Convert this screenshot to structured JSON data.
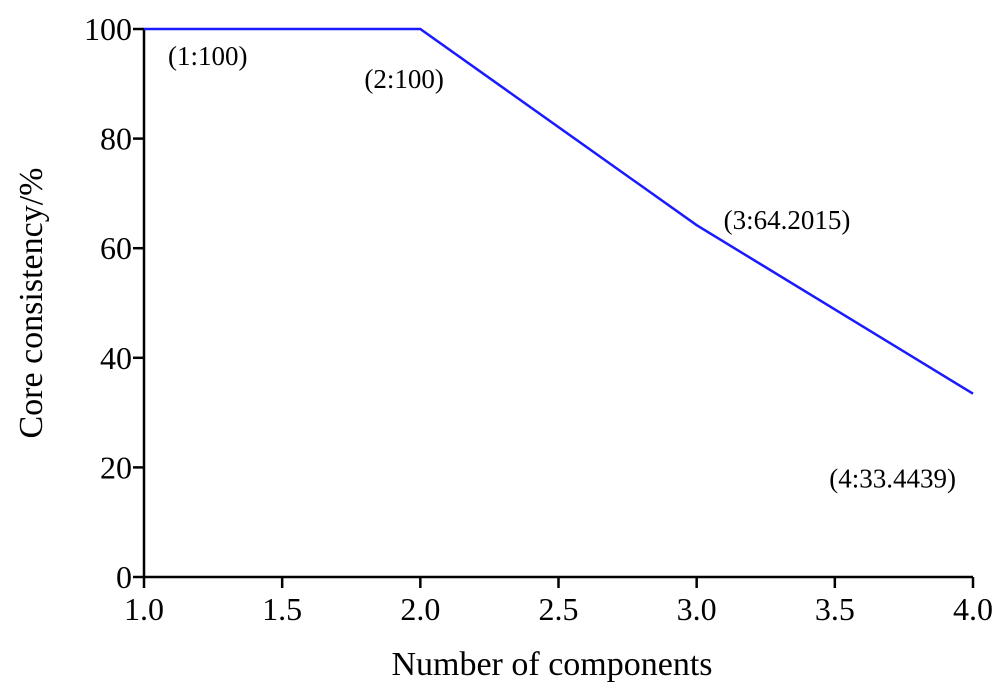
{
  "chart_data": {
    "type": "line",
    "title": "",
    "xlabel": "Number of components",
    "ylabel": "Core consistency/%",
    "xlim": [
      1.0,
      4.0
    ],
    "ylim": [
      0,
      100
    ],
    "x_ticks": [
      "1.0",
      "1.5",
      "2.0",
      "2.5",
      "3.0",
      "3.5",
      "4.0"
    ],
    "y_ticks": [
      "0",
      "20",
      "40",
      "60",
      "80",
      "100"
    ],
    "grid": false,
    "line_color": "#1a1aff",
    "series": [
      {
        "x": [
          1,
          2,
          3,
          4
        ],
        "y": [
          100,
          100,
          64.2015,
          33.4439
        ]
      }
    ],
    "annotations": [
      {
        "text": "(1:100)",
        "x": 1,
        "y": 100
      },
      {
        "text": "(2:100)",
        "x": 2,
        "y": 100
      },
      {
        "text": "(3:64.2015)",
        "x": 3,
        "y": 64.2015
      },
      {
        "text": "(4:33.4439)",
        "x": 4,
        "y": 33.4439
      }
    ]
  }
}
